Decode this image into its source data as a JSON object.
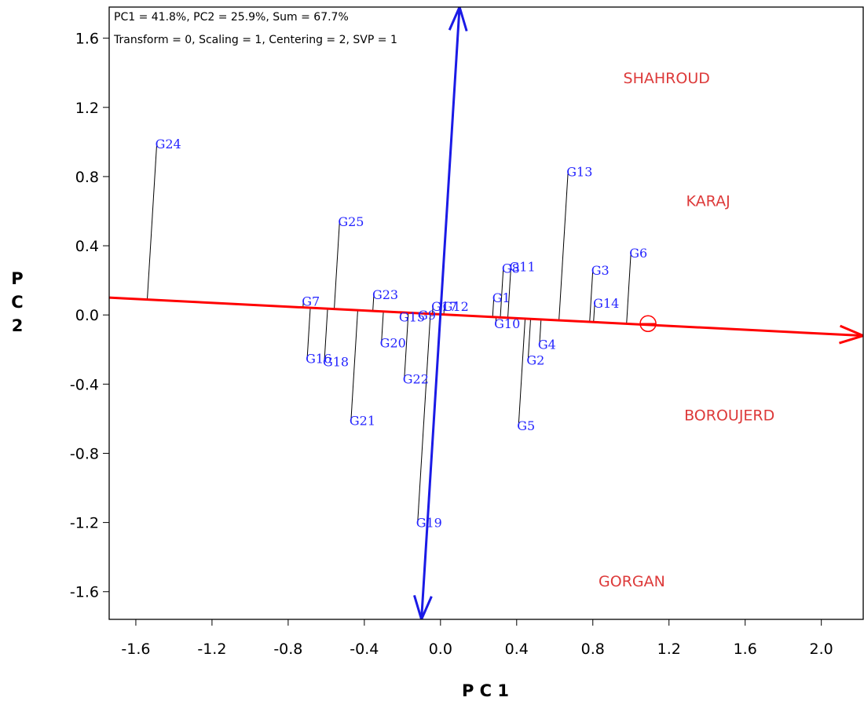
{
  "chart_data": {
    "type": "scatter",
    "info_lines": [
      "PC1 = 41.8%, PC2 = 25.9%, Sum = 67.7%",
      "Transform = 0, Scaling = 1, Centering = 2, SVP = 1"
    ],
    "xlabel": "P C 1",
    "ylabel": [
      "P",
      "C",
      "2"
    ],
    "xlim": [
      -1.74,
      2.22
    ],
    "ylim": [
      -1.76,
      1.78
    ],
    "x_ticks": [
      -1.6,
      -1.2,
      -0.8,
      -0.4,
      0.0,
      0.4,
      0.8,
      1.2,
      1.6,
      2.0
    ],
    "x_tick_labels": [
      "-1.6",
      "-1.2",
      "-0.8",
      "-0.4",
      "0.0",
      "0.4",
      "0.8",
      "1.2",
      "1.6",
      "2.0"
    ],
    "y_ticks": [
      1.6,
      1.2,
      0.8,
      0.4,
      0.0,
      -0.4,
      -0.8,
      -1.2,
      -1.6
    ],
    "y_tick_labels": [
      "1.6",
      "1.2",
      "0.8",
      "0.4",
      "0.0",
      "-0.4",
      "-0.8",
      "-1.2",
      "-1.6"
    ],
    "grid": false,
    "colors": {
      "genotype": "#2424ff",
      "environment": "#dd3a3a",
      "aea_abscissa": "#ff0000",
      "aea_ordinate": "#1a1ae6",
      "projection": "#000000"
    },
    "aea_abscissa": {
      "from": [
        -1.74,
        0.1
      ],
      "to": [
        2.22,
        -0.12
      ]
    },
    "aea_ordinate": {
      "from": [
        -0.1,
        -1.76
      ],
      "to": [
        0.1,
        1.78
      ]
    },
    "mean_environment_marker": [
      1.09,
      -0.05
    ],
    "genotypes": [
      {
        "label": "G1",
        "x": 0.28,
        "y": 0.1
      },
      {
        "label": "G2",
        "x": 0.46,
        "y": -0.26
      },
      {
        "label": "G3",
        "x": 0.8,
        "y": 0.26
      },
      {
        "label": "G4",
        "x": 0.52,
        "y": -0.17
      },
      {
        "label": "G5",
        "x": 0.41,
        "y": -0.64
      },
      {
        "label": "G6",
        "x": 1.0,
        "y": 0.36
      },
      {
        "label": "G7",
        "x": -0.72,
        "y": 0.08
      },
      {
        "label": "G8",
        "x": 0.33,
        "y": 0.27
      },
      {
        "label": "G9",
        "x": -0.11,
        "y": 0.0
      },
      {
        "label": "G10",
        "x": 0.29,
        "y": -0.05
      },
      {
        "label": "G11",
        "x": 0.37,
        "y": 0.28
      },
      {
        "label": "G12",
        "x": 0.02,
        "y": 0.05
      },
      {
        "label": "G13",
        "x": 0.67,
        "y": 0.83
      },
      {
        "label": "G14",
        "x": 0.81,
        "y": 0.07
      },
      {
        "label": "G15",
        "x": -0.21,
        "y": -0.01
      },
      {
        "label": "G16",
        "x": -0.7,
        "y": -0.25
      },
      {
        "label": "G17",
        "x": -0.04,
        "y": 0.05
      },
      {
        "label": "G18",
        "x": -0.61,
        "y": -0.27
      },
      {
        "label": "G19",
        "x": -0.12,
        "y": -1.2
      },
      {
        "label": "G20",
        "x": -0.31,
        "y": -0.16
      },
      {
        "label": "G21",
        "x": -0.47,
        "y": -0.61
      },
      {
        "label": "G22",
        "x": -0.19,
        "y": -0.37
      },
      {
        "label": "G23",
        "x": -0.35,
        "y": 0.12
      },
      {
        "label": "G24",
        "x": -1.49,
        "y": 0.99
      },
      {
        "label": "G25",
        "x": -0.53,
        "y": 0.54
      }
    ],
    "environments": [
      {
        "label": "SHAHROUD",
        "x": 0.96,
        "y": 1.34
      },
      {
        "label": "KARAJ",
        "x": 1.29,
        "y": 0.63
      },
      {
        "label": "BOROUJERD",
        "x": 1.28,
        "y": -0.61
      },
      {
        "label": "GORGAN",
        "x": 0.83,
        "y": -1.57
      }
    ]
  }
}
